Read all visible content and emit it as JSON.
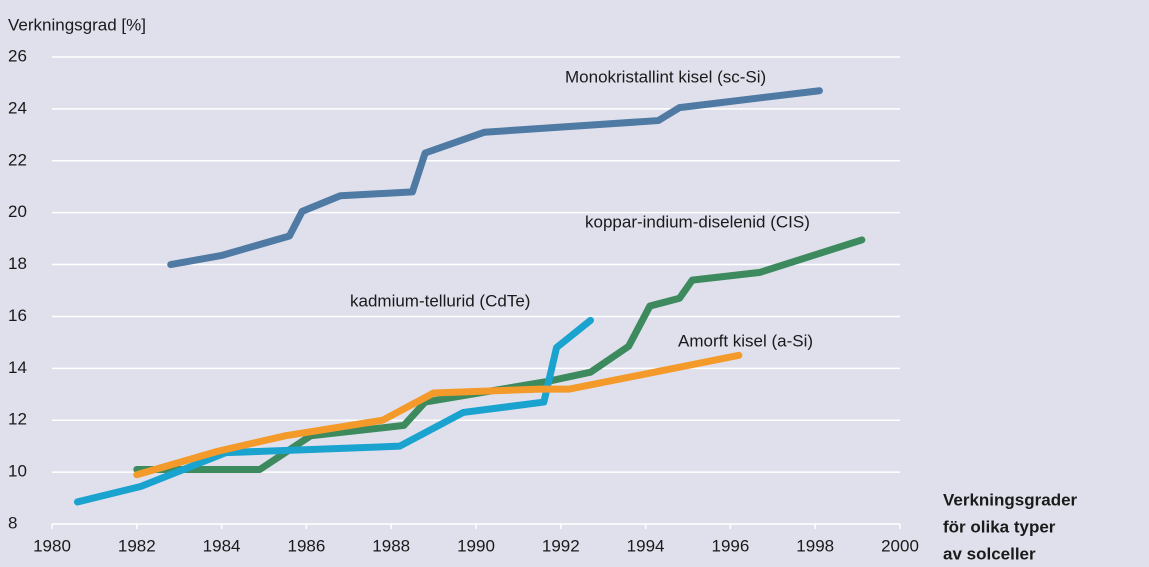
{
  "chart_data": {
    "type": "line",
    "ylabel": "Verkningsgrad [%]",
    "caption": [
      "Verkningsgrader",
      "för olika typer",
      "av solceller"
    ],
    "xlim": [
      1980,
      2000
    ],
    "xticks": [
      1980,
      1982,
      1984,
      1986,
      1988,
      1990,
      1992,
      1994,
      1996,
      1998,
      2000
    ],
    "ylim": [
      8,
      26
    ],
    "yticks": [
      8,
      10,
      12,
      14,
      16,
      18,
      20,
      22,
      24,
      26
    ],
    "grid": true,
    "series": [
      {
        "name": "Monokristallint kisel (sc-Si)",
        "color": "#4f7aa3",
        "x": [
          1982.8,
          1984,
          1985.6,
          1985.9,
          1986.8,
          1988.5,
          1988.8,
          1990.2,
          1994.3,
          1994.8,
          1998.1
        ],
        "values": [
          18.0,
          18.35,
          19.1,
          20.05,
          20.65,
          20.8,
          22.3,
          23.1,
          23.55,
          24.05,
          24.7
        ]
      },
      {
        "name": "koppar-indium-diselenid (CIS)",
        "color": "#3d8a5e",
        "x": [
          1982,
          1984.9,
          1986.1,
          1988.3,
          1988.8,
          1991.7,
          1992.7,
          1993.6,
          1994.1,
          1994.8,
          1995.1,
          1996.7,
          1999.1
        ],
        "values": [
          10.1,
          10.1,
          11.4,
          11.8,
          12.7,
          13.5,
          13.85,
          14.85,
          16.4,
          16.7,
          17.4,
          17.7,
          18.95
        ]
      },
      {
        "name": "kadmium-tellurid (CdTe)",
        "color": "#1aa3cf",
        "x": [
          1980.6,
          1982.1,
          1984.1,
          1988.2,
          1989.7,
          1991.6,
          1991.9,
          1992.7
        ],
        "values": [
          8.85,
          9.45,
          10.75,
          11.0,
          12.3,
          12.7,
          14.8,
          15.85
        ]
      },
      {
        "name": "Amorft kisel (a-Si)",
        "color": "#f39a2b",
        "x": [
          1982,
          1983.9,
          1985.5,
          1987.8,
          1989,
          1991.5,
          1992.2,
          1996.2
        ],
        "values": [
          9.9,
          10.8,
          11.4,
          12.0,
          13.05,
          13.2,
          13.2,
          14.5
        ]
      }
    ]
  }
}
